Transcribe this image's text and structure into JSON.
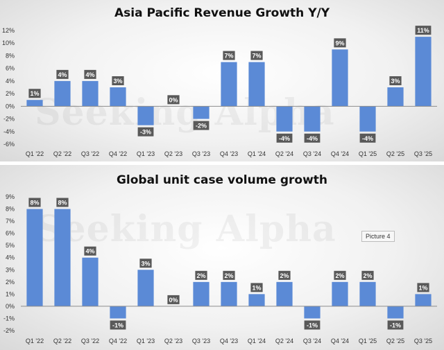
{
  "watermark_text": "Seeking Alpha",
  "picture_label": "Picture 4",
  "chart_data": [
    {
      "type": "bar",
      "title": "Asia Pacific Revenue Growth Y/Y",
      "categories": [
        "Q1 '22",
        "Q2 '22",
        "Q3 '22",
        "Q4 '22",
        "Q1 '23",
        "Q2 '23",
        "Q3 '23",
        "Q4 '23",
        "Q1 '24",
        "Q2 '24",
        "Q3 '24",
        "Q4 '24",
        "Q1 '25",
        "Q2 '25",
        "Q3 '25"
      ],
      "values": [
        1,
        4,
        4,
        3,
        -3,
        0,
        -2,
        7,
        7,
        -4,
        -4,
        9,
        -4,
        3,
        11
      ],
      "labels": [
        "1%",
        "4%",
        "4%",
        "3%",
        "-3%",
        "0%",
        "-2%",
        "7%",
        "7%",
        "-4%",
        "-4%",
        "9%",
        "-4%",
        "3%",
        "11%"
      ],
      "ylim": [
        -6,
        12
      ],
      "yticks": [
        12,
        10,
        8,
        6,
        4,
        2,
        0,
        -2,
        -4,
        -6
      ],
      "ytick_labels": [
        "12%",
        "10%",
        "8%",
        "6%",
        "4%",
        "2%",
        "0%",
        "-2%",
        "-4%",
        "-6%"
      ],
      "bar_color": "#5b8ad6",
      "xlabel": "",
      "ylabel": "",
      "grid": false
    },
    {
      "type": "bar",
      "title": "Global unit case volume growth",
      "categories": [
        "Q1 '22",
        "Q2 '22",
        "Q3 '22",
        "Q4 '22",
        "Q1 '23",
        "Q2 '23",
        "Q3 '23",
        "Q4 '23",
        "Q1 '24",
        "Q2 '24",
        "Q3 '24",
        "Q4 '24",
        "Q1 '25",
        "Q2 '25",
        "Q3 '25"
      ],
      "values": [
        8,
        8,
        4,
        -1,
        3,
        0,
        2,
        2,
        1,
        2,
        -1,
        2,
        2,
        -1,
        1
      ],
      "labels": [
        "8%",
        "8%",
        "4%",
        "-1%",
        "3%",
        "0%",
        "2%",
        "2%",
        "1%",
        "2%",
        "-1%",
        "2%",
        "2%",
        "-1%",
        "1%"
      ],
      "ylim": [
        -2,
        9
      ],
      "yticks": [
        9,
        8,
        7,
        6,
        5,
        4,
        3,
        2,
        1,
        0,
        -1,
        -2
      ],
      "ytick_labels": [
        "9%",
        "8%",
        "7%",
        "6%",
        "5%",
        "4%",
        "3%",
        "2%",
        "1%",
        "0%",
        "-1%",
        "-2%"
      ],
      "bar_color": "#5b8ad6",
      "xlabel": "",
      "ylabel": "",
      "grid": false
    }
  ]
}
